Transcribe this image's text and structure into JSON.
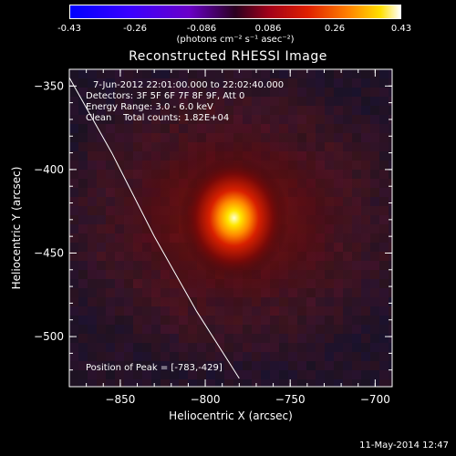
{
  "colorbar": {
    "ticks": [
      "-0.43",
      "-0.26",
      "-0.086",
      "0.086",
      "0.26",
      "0.43"
    ],
    "unit_label": "(photons cm⁻² s⁻¹ asec⁻²)"
  },
  "title": "Reconstructed RHESSI Image",
  "annotations": {
    "time_range": "7-Jun-2012 22:01:00.000 to 22:02:40.000",
    "detectors": "Detectors: 3F 5F 6F 7F 8F 9F, Att 0",
    "energy_range": "Energy Range: 3.0 - 6.0 keV",
    "method_counts": "Clean    Total counts: 1.82E+04",
    "peak": "Position of Peak = [-783,-429]"
  },
  "footer": {
    "date": "11-May-2014 12:47"
  },
  "chart_data": {
    "type": "heatmap",
    "title": "Reconstructed RHESSI Image",
    "xlabel": "Heliocentric X (arcsec)",
    "ylabel": "Heliocentric Y (arcsec)",
    "xlim": [
      -880,
      -690
    ],
    "ylim": [
      -530,
      -340
    ],
    "xticks": [
      -850,
      -800,
      -750,
      -700
    ],
    "yticks": [
      -350,
      -400,
      -450,
      -500
    ],
    "colorbar": {
      "min": -0.43,
      "max": 0.43,
      "ticks": [
        -0.43,
        -0.26,
        -0.086,
        0.086,
        0.26,
        0.43
      ]
    },
    "peak": {
      "x": -783,
      "y": -429,
      "value": 0.43
    },
    "limb_curve": [
      [
        -880,
        -345
      ],
      [
        -855,
        -390
      ],
      [
        -830,
        -440
      ],
      [
        -805,
        -485
      ],
      [
        -780,
        -525
      ]
    ],
    "grid": false
  }
}
